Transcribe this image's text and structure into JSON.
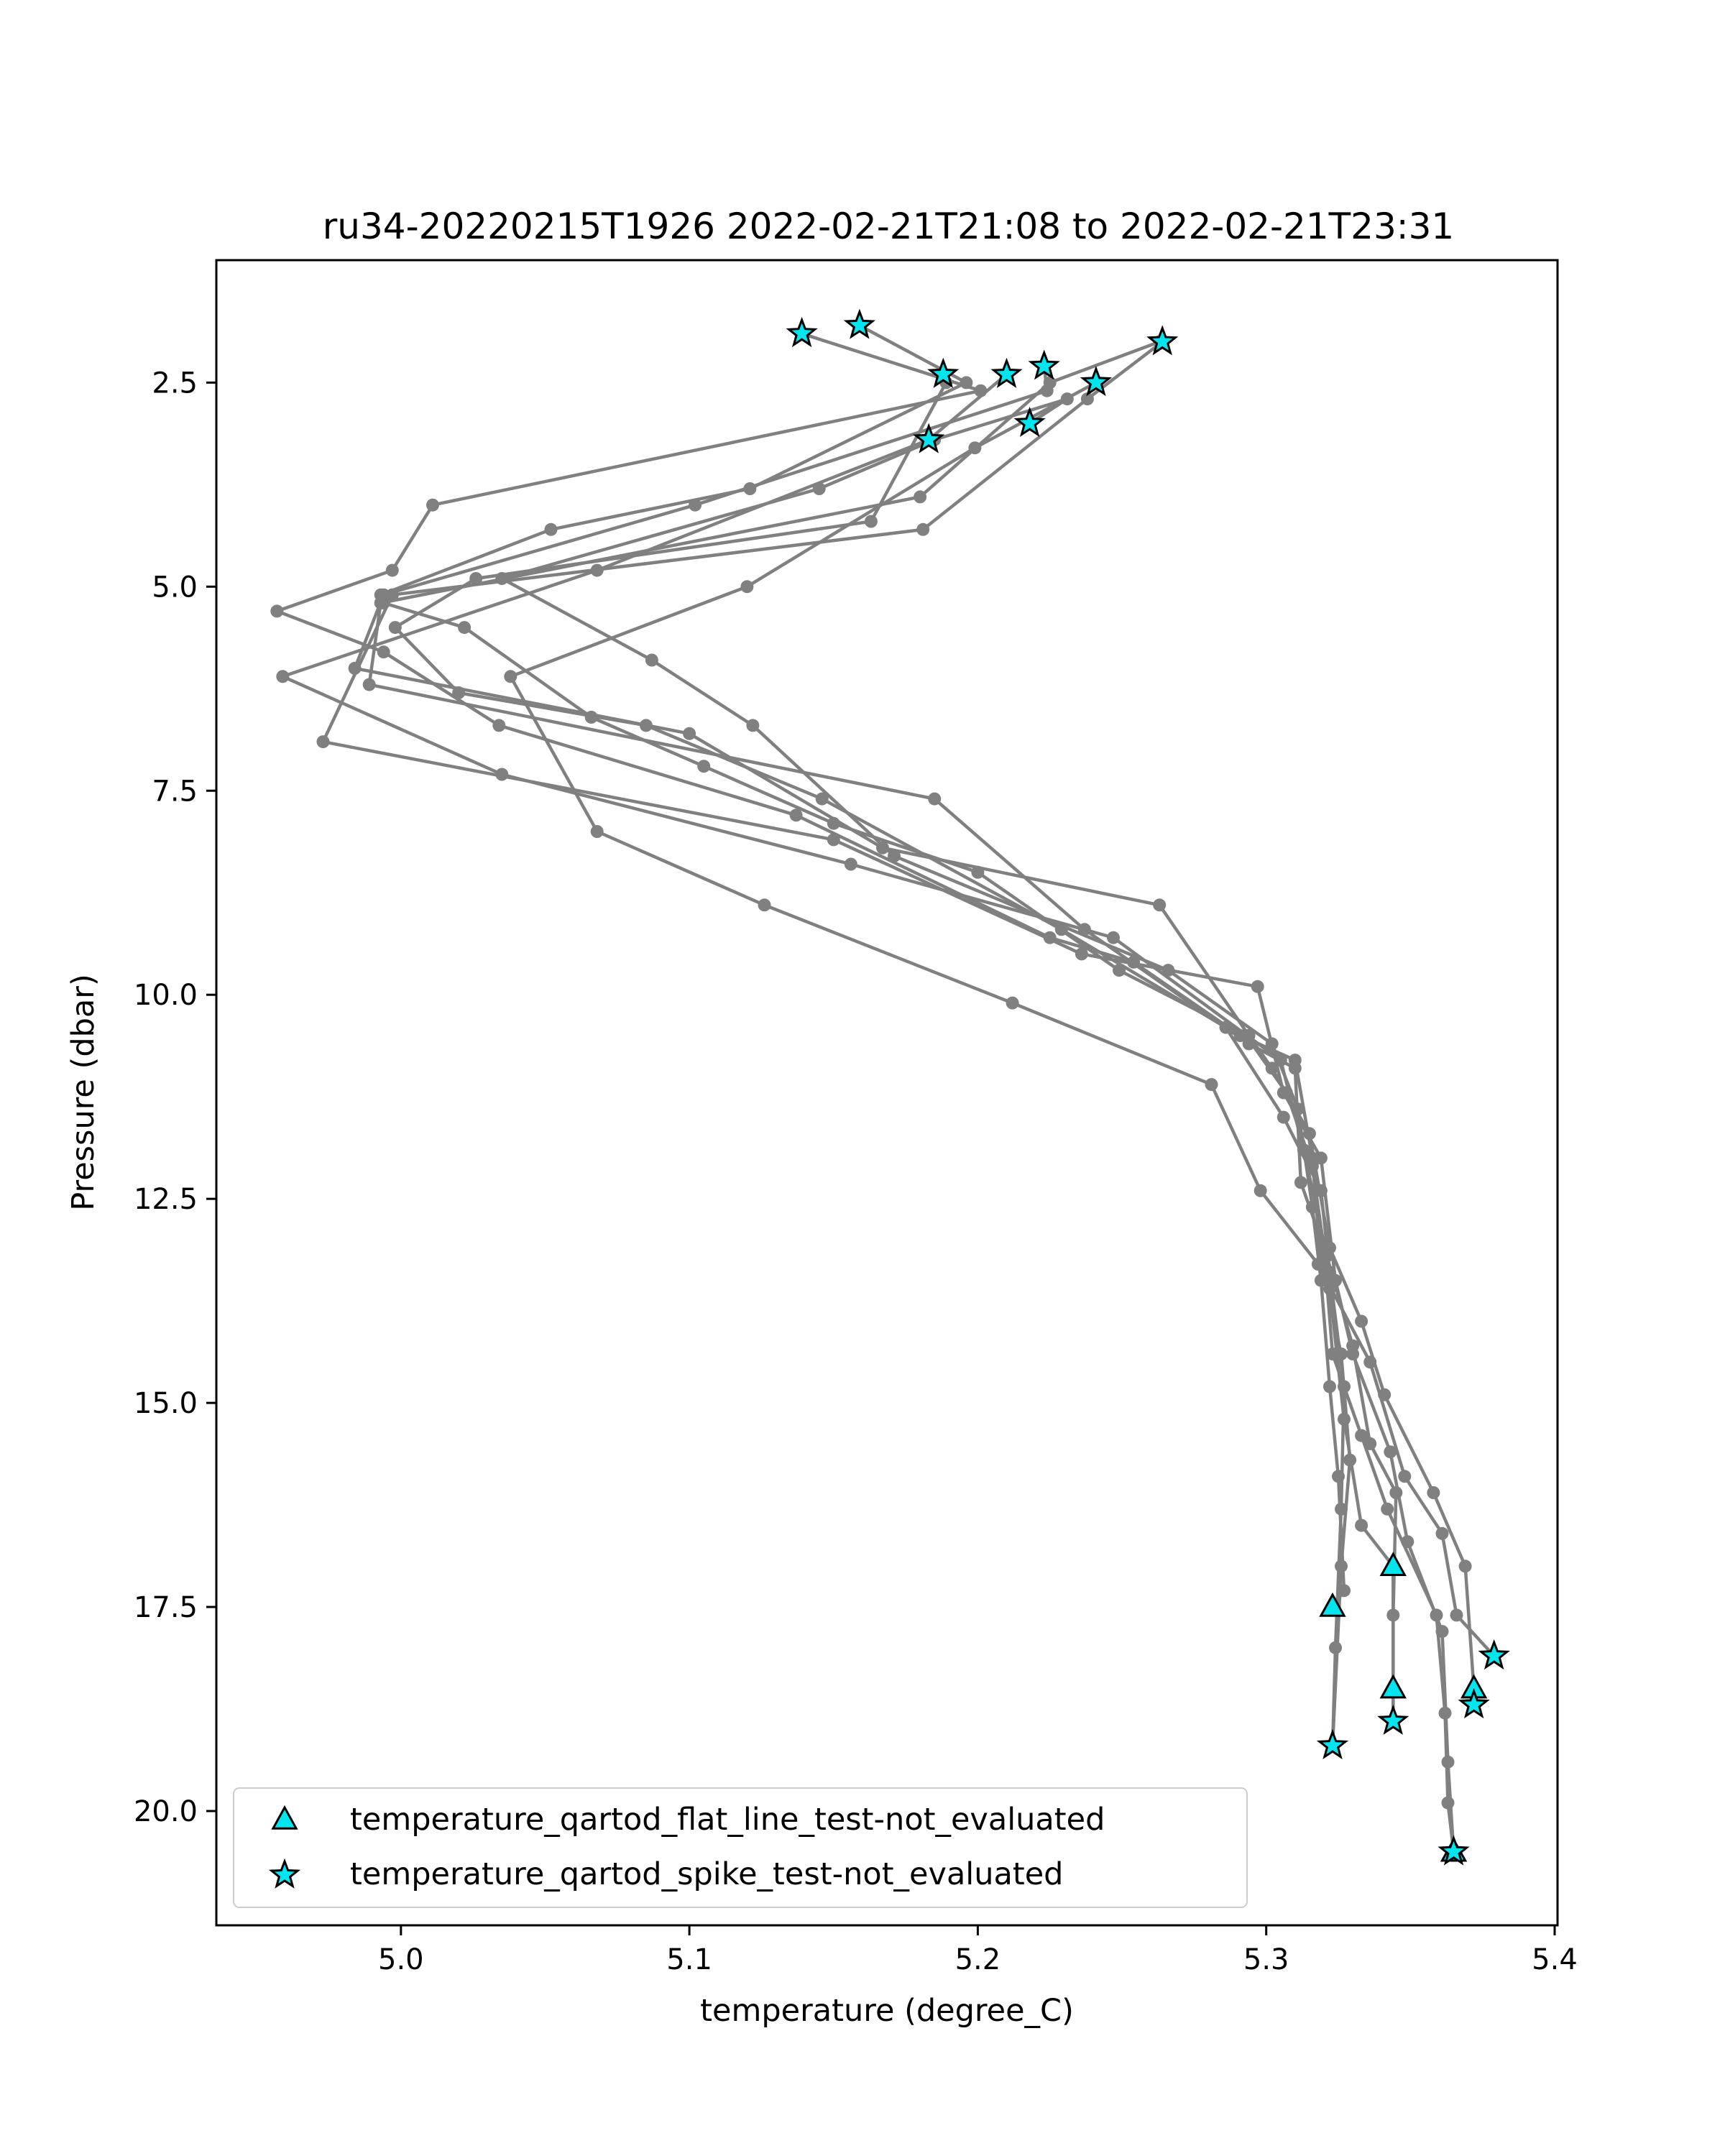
{
  "chart_data": {
    "type": "line",
    "title": "ru34-20220215T1926 2022-02-21T21:08 to 2022-02-21T23:31",
    "xlabel": "temperature (degree_C)",
    "ylabel": "Pressure (dbar)",
    "xlim": [
      4.936,
      5.401
    ],
    "ylim": [
      21.4,
      1.0
    ],
    "y_inverted": true,
    "xticks": [
      "5.0",
      "5.1",
      "5.2",
      "5.3",
      "5.4"
    ],
    "yticks": [
      "2.5",
      "5.0",
      "7.5",
      "10.0",
      "12.5",
      "15.0",
      "17.5",
      "20.0"
    ],
    "legend_position": "lower-left",
    "colors": {
      "profile_line": "#808080",
      "marker_fill": "#00e5ee",
      "marker_edge": "#000000"
    },
    "profiles": [
      [
        [
          5.139,
          1.9
        ],
        [
          5.201,
          2.6
        ],
        [
          5.011,
          4.0
        ],
        [
          4.997,
          4.8
        ],
        [
          4.957,
          5.3
        ],
        [
          4.994,
          5.8
        ],
        [
          5.034,
          6.7
        ],
        [
          5.137,
          7.8
        ],
        [
          5.225,
          9.3
        ],
        [
          5.254,
          9.6
        ],
        [
          5.291,
          10.5
        ],
        [
          5.31,
          10.8
        ],
        [
          5.316,
          12.0
        ],
        [
          5.319,
          13.3
        ],
        [
          5.326,
          14.4
        ],
        [
          5.329,
          15.7
        ],
        [
          5.326,
          17.0
        ],
        [
          5.323,
          19.2
        ]
      ],
      [
        [
          5.159,
          1.8
        ],
        [
          5.196,
          2.5
        ],
        [
          5.121,
          3.8
        ],
        [
          5.052,
          4.3
        ],
        [
          4.993,
          5.1
        ],
        [
          4.994,
          5.2
        ],
        [
          5.022,
          5.5
        ],
        [
          5.066,
          6.6
        ],
        [
          5.105,
          7.2
        ],
        [
          5.15,
          7.9
        ],
        [
          5.2,
          8.5
        ],
        [
          5.249,
          9.7
        ],
        [
          5.293,
          10.5
        ],
        [
          5.307,
          11.2
        ],
        [
          5.316,
          12.1
        ],
        [
          5.322,
          13.6
        ],
        [
          5.327,
          15.2
        ],
        [
          5.333,
          16.5
        ],
        [
          5.344,
          17.0
        ],
        [
          5.344,
          18.9
        ]
      ],
      [
        [
          5.188,
          2.4
        ],
        [
          5.189,
          2.5
        ],
        [
          5.163,
          4.2
        ],
        [
          5.026,
          4.9
        ],
        [
          4.998,
          5.5
        ],
        [
          5.02,
          6.3
        ],
        [
          5.085,
          6.7
        ],
        [
          5.146,
          7.6
        ],
        [
          5.229,
          9.2
        ],
        [
          5.286,
          10.4
        ],
        [
          5.306,
          11.5
        ],
        [
          5.319,
          12.4
        ],
        [
          5.322,
          13.4
        ],
        [
          5.327,
          14.8
        ],
        [
          5.326,
          16.3
        ],
        [
          5.324,
          18.0
        ],
        [
          5.323,
          19.2
        ]
      ],
      [
        [
          5.21,
          2.4
        ],
        [
          5.183,
          3.2
        ],
        [
          5.068,
          4.8
        ],
        [
          4.959,
          6.1
        ],
        [
          5.035,
          7.3
        ],
        [
          5.156,
          8.4
        ],
        [
          5.247,
          9.3
        ],
        [
          5.305,
          10.8
        ],
        [
          5.313,
          11.9
        ],
        [
          5.321,
          13.2
        ],
        [
          5.33,
          14.3
        ],
        [
          5.336,
          15.5
        ],
        [
          5.345,
          16.1
        ],
        [
          5.344,
          17.6
        ],
        [
          5.344,
          18.5
        ],
        [
          5.344,
          18.9
        ]
      ],
      [
        [
          5.223,
          2.3
        ],
        [
          5.224,
          2.6
        ],
        [
          5.102,
          4.0
        ],
        [
          4.994,
          5.1
        ],
        [
          4.984,
          6.0
        ],
        [
          5.1,
          6.8
        ],
        [
          5.167,
          8.2
        ],
        [
          5.263,
          8.9
        ],
        [
          5.294,
          10.5
        ],
        [
          5.302,
          10.9
        ],
        [
          5.315,
          11.7
        ],
        [
          5.322,
          13.1
        ],
        [
          5.333,
          14.0
        ],
        [
          5.341,
          14.9
        ],
        [
          5.358,
          16.1
        ],
        [
          5.369,
          17.0
        ],
        [
          5.372,
          18.5
        ],
        [
          5.372,
          18.7
        ]
      ],
      [
        [
          5.241,
          2.5
        ],
        [
          5.199,
          3.3
        ],
        [
          5.12,
          5.0
        ],
        [
          5.038,
          6.1
        ],
        [
          5.068,
          8.0
        ],
        [
          5.126,
          8.9
        ],
        [
          5.212,
          10.1
        ],
        [
          5.281,
          11.1
        ],
        [
          5.298,
          12.4
        ],
        [
          5.318,
          13.3
        ],
        [
          5.336,
          14.5
        ],
        [
          5.348,
          15.9
        ],
        [
          5.361,
          16.6
        ],
        [
          5.366,
          17.6
        ],
        [
          5.379,
          18.1
        ]
      ],
      [
        [
          5.264,
          2.0
        ],
        [
          5.238,
          2.7
        ],
        [
          5.181,
          4.3
        ],
        [
          4.997,
          5.1
        ],
        [
          4.973,
          6.9
        ],
        [
          5.15,
          8.1
        ],
        [
          5.236,
          9.5
        ],
        [
          5.297,
          9.9
        ],
        [
          5.306,
          11.2
        ],
        [
          5.319,
          12.0
        ],
        [
          5.324,
          13.5
        ],
        [
          5.33,
          14.4
        ],
        [
          5.343,
          15.6
        ],
        [
          5.349,
          16.7
        ],
        [
          5.361,
          17.8
        ],
        [
          5.363,
          19.4
        ],
        [
          5.365,
          20.5
        ]
      ],
      [
        [
          5.263,
          2.0
        ],
        [
          5.225,
          2.5
        ],
        [
          5.18,
          3.9
        ],
        [
          4.993,
          5.2
        ],
        [
          4.989,
          6.2
        ],
        [
          5.185,
          7.6
        ],
        [
          5.237,
          9.2
        ],
        [
          5.294,
          10.6
        ],
        [
          5.31,
          10.9
        ],
        [
          5.312,
          12.3
        ],
        [
          5.32,
          13.1
        ],
        [
          5.323,
          14.4
        ],
        [
          5.333,
          15.4
        ],
        [
          5.342,
          16.3
        ],
        [
          5.359,
          17.6
        ],
        [
          5.362,
          18.8
        ],
        [
          5.363,
          19.9
        ],
        [
          5.365,
          20.5
        ]
      ],
      [
        [
          5.218,
          3.0
        ],
        [
          5.231,
          2.7
        ],
        [
          5.185,
          3.2
        ],
        [
          5.145,
          3.8
        ],
        [
          5.035,
          4.9
        ],
        [
          5.087,
          5.9
        ],
        [
          5.122,
          6.7
        ],
        [
          5.171,
          8.3
        ],
        [
          5.266,
          9.7
        ],
        [
          5.302,
          10.6
        ],
        [
          5.311,
          11.4
        ],
        [
          5.316,
          12.6
        ],
        [
          5.319,
          13.5
        ],
        [
          5.322,
          14.8
        ],
        [
          5.325,
          15.9
        ],
        [
          5.327,
          17.3
        ],
        [
          5.323,
          17.5
        ]
      ]
    ],
    "flat_line_markers": [
      [
        5.344,
        17.0
      ],
      [
        5.323,
        17.5
      ],
      [
        5.344,
        18.5
      ],
      [
        5.372,
        18.5
      ],
      [
        5.365,
        20.5
      ]
    ],
    "spike_markers": [
      [
        5.139,
        1.9
      ],
      [
        5.159,
        1.8
      ],
      [
        5.188,
        2.4
      ],
      [
        5.21,
        2.4
      ],
      [
        5.223,
        2.3
      ],
      [
        5.241,
        2.5
      ],
      [
        5.264,
        2.0
      ],
      [
        5.183,
        3.2
      ],
      [
        5.218,
        3.0
      ],
      [
        5.379,
        18.1
      ],
      [
        5.372,
        18.7
      ],
      [
        5.344,
        18.9
      ],
      [
        5.323,
        19.2
      ],
      [
        5.365,
        20.5
      ]
    ],
    "legend": [
      {
        "marker": "triangle",
        "label": "temperature_qartod_flat_line_test-not_evaluated"
      },
      {
        "marker": "star",
        "label": "temperature_qartod_spike_test-not_evaluated"
      }
    ]
  }
}
